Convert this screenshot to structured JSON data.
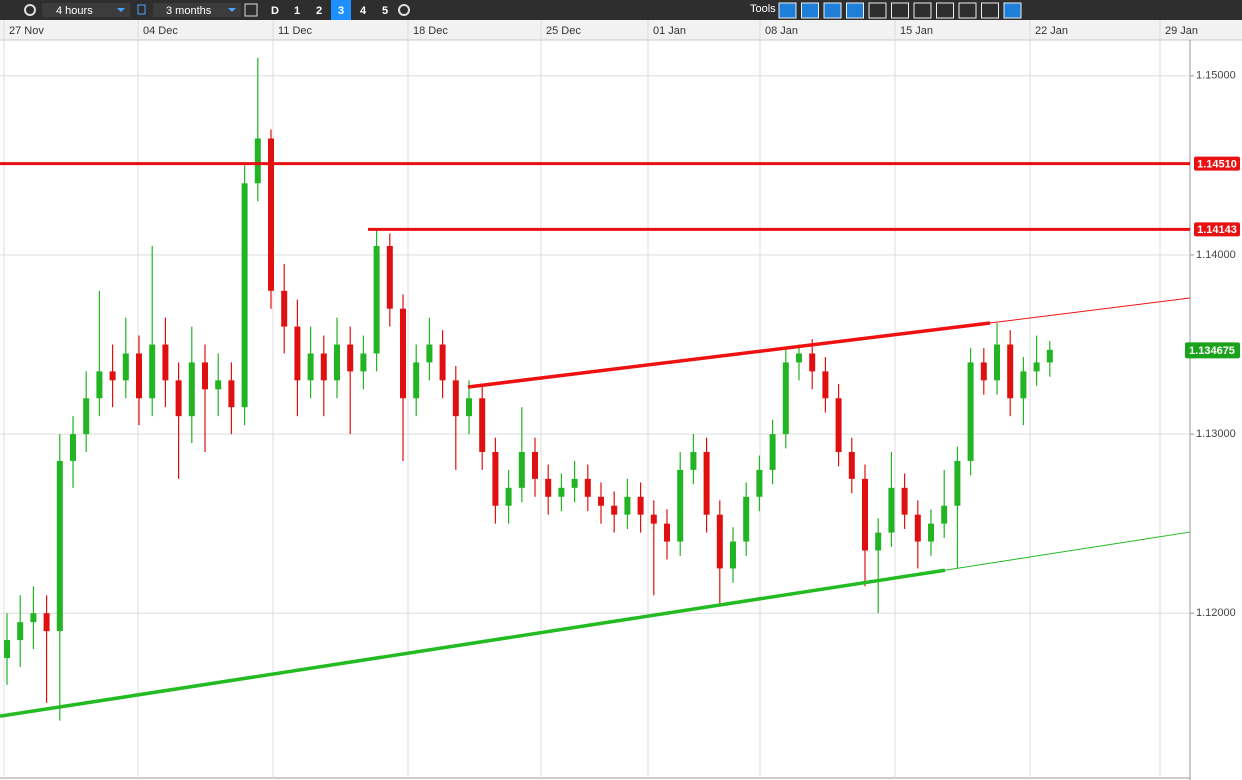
{
  "toolbar": {
    "interval": "4 hours",
    "range": "3 months",
    "periods": [
      "D",
      "1",
      "2",
      "3",
      "4",
      "5"
    ],
    "active_period": 3,
    "tools_label": "Tools"
  },
  "chart_data": {
    "type": "candlestick",
    "dates": [
      "27 Nov",
      "04 Dec",
      "11 Dec",
      "18 Dec",
      "25 Dec",
      "01 Jan",
      "08 Jan",
      "15 Jan",
      "22 Jan",
      "29 Jan"
    ],
    "ylim": [
      1.1108,
      1.152
    ],
    "yticks": [
      {
        "value": 1.15,
        "label": "1.15000"
      },
      {
        "value": 1.14,
        "label": "1.14000"
      },
      {
        "value": 1.13,
        "label": "1.13000"
      },
      {
        "value": 1.12,
        "label": "1.12000"
      }
    ],
    "grid": true,
    "up_color": "#22b422",
    "down_color": "#e01010",
    "levels": [
      {
        "value": 1.1451,
        "label": "1.14510",
        "color": "#e81010"
      },
      {
        "value": 1.14143,
        "label": "1.14143",
        "color": "#e81010"
      }
    ],
    "last_price": {
      "value": 1.134675,
      "label": "1.134675",
      "color": "#1aa31a"
    },
    "trendlines": [
      {
        "color": "#ee1111",
        "from": 1.13263,
        "to": 1.1362,
        "extended": 1.1376
      },
      {
        "color": "#22bb22",
        "from": 1.11425,
        "to": 1.1224,
        "extended": 1.12453
      }
    ],
    "candles": [
      [
        1.1175,
        1.12,
        1.116,
        1.1185
      ],
      [
        1.1185,
        1.121,
        1.117,
        1.1195
      ],
      [
        1.1195,
        1.1215,
        1.118,
        1.12
      ],
      [
        1.12,
        1.121,
        1.115,
        1.119
      ],
      [
        1.119,
        1.13,
        1.114,
        1.1285
      ],
      [
        1.1285,
        1.131,
        1.127,
        1.13
      ],
      [
        1.13,
        1.1335,
        1.129,
        1.132
      ],
      [
        1.132,
        1.138,
        1.131,
        1.1335
      ],
      [
        1.1335,
        1.135,
        1.1315,
        1.133
      ],
      [
        1.133,
        1.1365,
        1.132,
        1.1345
      ],
      [
        1.1345,
        1.1355,
        1.1305,
        1.132
      ],
      [
        1.132,
        1.1405,
        1.131,
        1.135
      ],
      [
        1.135,
        1.1365,
        1.1315,
        1.133
      ],
      [
        1.133,
        1.134,
        1.1275,
        1.131
      ],
      [
        1.131,
        1.136,
        1.1295,
        1.134
      ],
      [
        1.134,
        1.135,
        1.129,
        1.1325
      ],
      [
        1.1325,
        1.1345,
        1.131,
        1.133
      ],
      [
        1.133,
        1.134,
        1.13,
        1.1315
      ],
      [
        1.1315,
        1.145,
        1.1305,
        1.144
      ],
      [
        1.144,
        1.151,
        1.143,
        1.1465
      ],
      [
        1.1465,
        1.147,
        1.137,
        1.138
      ],
      [
        1.138,
        1.1395,
        1.1345,
        1.136
      ],
      [
        1.136,
        1.1375,
        1.131,
        1.133
      ],
      [
        1.133,
        1.136,
        1.132,
        1.1345
      ],
      [
        1.1345,
        1.1355,
        1.131,
        1.133
      ],
      [
        1.133,
        1.1365,
        1.132,
        1.135
      ],
      [
        1.135,
        1.136,
        1.13,
        1.1335
      ],
      [
        1.1335,
        1.1355,
        1.1325,
        1.1345
      ],
      [
        1.1345,
        1.1415,
        1.1335,
        1.1405
      ],
      [
        1.1405,
        1.1412,
        1.136,
        1.137
      ],
      [
        1.137,
        1.1378,
        1.1285,
        1.132
      ],
      [
        1.132,
        1.135,
        1.131,
        1.134
      ],
      [
        1.134,
        1.1365,
        1.133,
        1.135
      ],
      [
        1.135,
        1.1358,
        1.132,
        1.133
      ],
      [
        1.133,
        1.1338,
        1.128,
        1.131
      ],
      [
        1.131,
        1.133,
        1.13,
        1.132
      ],
      [
        1.132,
        1.1328,
        1.128,
        1.129
      ],
      [
        1.129,
        1.1298,
        1.125,
        1.126
      ],
      [
        1.126,
        1.128,
        1.125,
        1.127
      ],
      [
        1.127,
        1.1315,
        1.1262,
        1.129
      ],
      [
        1.129,
        1.1298,
        1.1265,
        1.1275
      ],
      [
        1.1275,
        1.1283,
        1.1255,
        1.1265
      ],
      [
        1.1265,
        1.1278,
        1.1257,
        1.127
      ],
      [
        1.127,
        1.1285,
        1.1262,
        1.1275
      ],
      [
        1.1275,
        1.1283,
        1.1257,
        1.1265
      ],
      [
        1.1265,
        1.1273,
        1.125,
        1.126
      ],
      [
        1.126,
        1.1268,
        1.1245,
        1.1255
      ],
      [
        1.1255,
        1.1275,
        1.1247,
        1.1265
      ],
      [
        1.1265,
        1.1273,
        1.1245,
        1.1255
      ],
      [
        1.1255,
        1.1263,
        1.121,
        1.125
      ],
      [
        1.125,
        1.1258,
        1.123,
        1.124
      ],
      [
        1.124,
        1.129,
        1.1232,
        1.128
      ],
      [
        1.128,
        1.13,
        1.1272,
        1.129
      ],
      [
        1.129,
        1.1298,
        1.1245,
        1.1255
      ],
      [
        1.1255,
        1.1263,
        1.1205,
        1.1225
      ],
      [
        1.1225,
        1.1248,
        1.1217,
        1.124
      ],
      [
        1.124,
        1.1273,
        1.1232,
        1.1265
      ],
      [
        1.1265,
        1.1288,
        1.1257,
        1.128
      ],
      [
        1.128,
        1.1308,
        1.1272,
        1.13
      ],
      [
        1.13,
        1.1348,
        1.1292,
        1.134
      ],
      [
        1.134,
        1.135,
        1.133,
        1.1345
      ],
      [
        1.1345,
        1.1353,
        1.1325,
        1.1335
      ],
      [
        1.1335,
        1.1343,
        1.1312,
        1.132
      ],
      [
        1.132,
        1.1328,
        1.1282,
        1.129
      ],
      [
        1.129,
        1.1298,
        1.1267,
        1.1275
      ],
      [
        1.1275,
        1.1283,
        1.1215,
        1.1235
      ],
      [
        1.1235,
        1.1253,
        1.12,
        1.1245
      ],
      [
        1.1245,
        1.129,
        1.1237,
        1.127
      ],
      [
        1.127,
        1.1278,
        1.1247,
        1.1255
      ],
      [
        1.1255,
        1.1263,
        1.1225,
        1.124
      ],
      [
        1.124,
        1.1258,
        1.1232,
        1.125
      ],
      [
        1.125,
        1.128,
        1.1242,
        1.126
      ],
      [
        1.126,
        1.1293,
        1.1225,
        1.1285
      ],
      [
        1.1285,
        1.1348,
        1.1277,
        1.134
      ],
      [
        1.134,
        1.1348,
        1.1322,
        1.133
      ],
      [
        1.133,
        1.1362,
        1.1322,
        1.135
      ],
      [
        1.135,
        1.1358,
        1.131,
        1.132
      ],
      [
        1.132,
        1.1343,
        1.1305,
        1.1335
      ],
      [
        1.1335,
        1.1355,
        1.1327,
        1.134
      ],
      [
        1.134,
        1.1352,
        1.1332,
        1.1347
      ]
    ]
  }
}
